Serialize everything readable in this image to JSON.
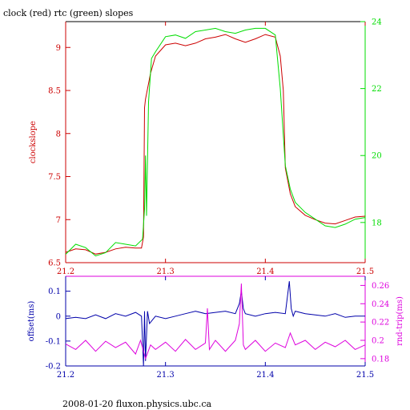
{
  "title": "clock (red) rtc (green) slopes",
  "footer": "2008-01-20 fluxon.physics.ubc.ca",
  "colors": {
    "clock": "#cc0000",
    "rtc": "#00dd00",
    "offset": "#0000aa",
    "rndtrip": "#dd00dd",
    "frame": "#000000"
  },
  "chart_data": [
    {
      "type": "line",
      "ylabel": "clockslope",
      "xlim": [
        21.2,
        21.5
      ],
      "ylim": [
        6.5,
        9.3
      ],
      "y2lim": [
        16.8,
        24.0
      ],
      "xticks": [
        "21.2",
        "21.3",
        "21.4",
        "21.5"
      ],
      "yticks": [
        "6.5",
        "7",
        "7.5",
        "8",
        "8.5",
        "9"
      ],
      "y2ticks": [
        "18",
        "20",
        "22",
        "24"
      ],
      "series": [
        {
          "axis": "left",
          "x": [
            21.2,
            21.21,
            21.22,
            21.23,
            21.24,
            21.25,
            21.26,
            21.27,
            21.276,
            21.278,
            21.279,
            21.28,
            21.285,
            21.29,
            21.3,
            21.31,
            21.32,
            21.33,
            21.34,
            21.35,
            21.36,
            21.37,
            21.38,
            21.39,
            21.4,
            21.41,
            21.415,
            21.418,
            21.42,
            21.425,
            21.43,
            21.44,
            21.45,
            21.46,
            21.47,
            21.48,
            21.49,
            21.5
          ],
          "values": [
            6.62,
            6.66,
            6.65,
            6.6,
            6.62,
            6.66,
            6.68,
            6.67,
            6.67,
            6.8,
            8.3,
            8.4,
            8.7,
            8.9,
            9.03,
            9.05,
            9.02,
            9.05,
            9.1,
            9.12,
            9.15,
            9.1,
            9.06,
            9.1,
            9.15,
            9.12,
            8.9,
            8.5,
            7.6,
            7.3,
            7.15,
            7.05,
            7.0,
            6.96,
            6.95,
            6.99,
            7.03,
            7.04
          ]
        },
        {
          "axis": "right",
          "x": [
            21.2,
            21.21,
            21.22,
            21.23,
            21.24,
            21.25,
            21.26,
            21.27,
            21.277,
            21.279,
            21.28,
            21.281,
            21.283,
            21.286,
            21.29,
            21.3,
            21.31,
            21.32,
            21.33,
            21.34,
            21.35,
            21.36,
            21.37,
            21.38,
            21.39,
            21.4,
            21.41,
            21.415,
            21.42,
            21.425,
            21.43,
            21.44,
            21.45,
            21.46,
            21.47,
            21.48,
            21.49,
            21.5
          ],
          "values": [
            17.05,
            17.35,
            17.25,
            17.0,
            17.1,
            17.4,
            17.35,
            17.3,
            17.5,
            18.4,
            20.0,
            18.2,
            21.6,
            22.9,
            23.1,
            23.55,
            23.6,
            23.5,
            23.7,
            23.75,
            23.8,
            23.7,
            23.65,
            23.75,
            23.8,
            23.8,
            23.6,
            22.0,
            19.7,
            19.0,
            18.6,
            18.3,
            18.1,
            17.9,
            17.85,
            17.95,
            18.1,
            18.15
          ]
        }
      ]
    },
    {
      "type": "line",
      "ylabel": "offset(ms)",
      "y2label": "rnd-trip(ms)",
      "xlim": [
        21.2,
        21.5
      ],
      "ylim": [
        -0.2,
        0.16
      ],
      "y2lim": [
        0.172,
        0.27
      ],
      "xticks": [
        "21.2",
        "21.3",
        "21.4",
        "21.5"
      ],
      "yticks": [
        "-0.2",
        "-0.1",
        "0",
        "0.1"
      ],
      "y2ticks": [
        "0.18",
        "0.2",
        "0.22",
        "0.24",
        "0.26"
      ],
      "series": [
        {
          "axis": "left",
          "x": [
            21.2,
            21.21,
            21.22,
            21.23,
            21.24,
            21.25,
            21.26,
            21.27,
            21.276,
            21.278,
            21.279,
            21.28,
            21.282,
            21.284,
            21.29,
            21.3,
            21.31,
            21.32,
            21.33,
            21.34,
            21.35,
            21.36,
            21.37,
            21.374,
            21.376,
            21.378,
            21.38,
            21.39,
            21.4,
            21.41,
            21.42,
            21.424,
            21.426,
            21.428,
            21.43,
            21.44,
            21.45,
            21.46,
            21.47,
            21.48,
            21.49,
            21.5
          ],
          "values": [
            -0.01,
            -0.005,
            -0.01,
            0.005,
            -0.01,
            0.01,
            0.0,
            0.015,
            0.0,
            -0.2,
            0.02,
            -0.18,
            0.02,
            -0.03,
            0.0,
            -0.01,
            0.0,
            0.01,
            0.02,
            0.01,
            0.015,
            0.02,
            0.01,
            0.05,
            0.1,
            0.03,
            0.01,
            0.0,
            0.01,
            0.015,
            0.01,
            0.14,
            0.03,
            0.0,
            0.02,
            0.01,
            0.005,
            0.0,
            0.01,
            -0.005,
            0.0,
            0.0
          ]
        },
        {
          "axis": "right",
          "x": [
            21.2,
            21.21,
            21.22,
            21.23,
            21.24,
            21.25,
            21.26,
            21.27,
            21.275,
            21.28,
            21.285,
            21.29,
            21.3,
            21.31,
            21.32,
            21.33,
            21.34,
            21.342,
            21.344,
            21.35,
            21.36,
            21.37,
            21.374,
            21.376,
            21.378,
            21.38,
            21.39,
            21.4,
            21.41,
            21.42,
            21.425,
            21.43,
            21.44,
            21.45,
            21.46,
            21.47,
            21.48,
            21.49,
            21.5
          ],
          "values": [
            0.196,
            0.19,
            0.2,
            0.188,
            0.199,
            0.192,
            0.198,
            0.185,
            0.2,
            0.18,
            0.195,
            0.19,
            0.198,
            0.188,
            0.201,
            0.19,
            0.197,
            0.235,
            0.19,
            0.2,
            0.188,
            0.2,
            0.218,
            0.262,
            0.195,
            0.19,
            0.2,
            0.188,
            0.197,
            0.192,
            0.208,
            0.195,
            0.2,
            0.19,
            0.198,
            0.193,
            0.2,
            0.19,
            0.195
          ]
        }
      ]
    }
  ]
}
